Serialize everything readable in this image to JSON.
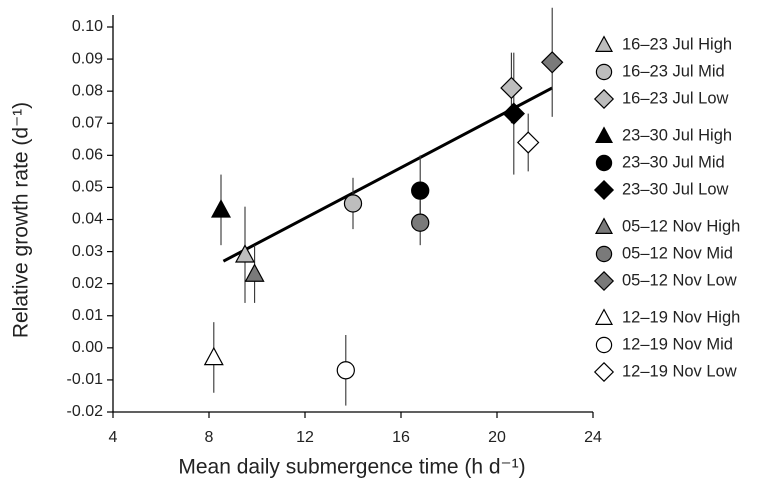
{
  "chart_data": {
    "type": "scatter",
    "xlabel": "Mean daily submergence time (h d⁻¹)",
    "ylabel": "Relative growth rate (d⁻¹)",
    "xlim": [
      4,
      24
    ],
    "xticks": [
      4,
      8,
      12,
      16,
      20,
      24
    ],
    "ylim": [
      -0.02,
      0.1
    ],
    "yticks": [
      {
        "value": -0.02,
        "label": "-0.02"
      },
      {
        "value": -0.01,
        "label": "-0.01"
      },
      {
        "value": 0,
        "label": "0.00"
      },
      {
        "value": 0.01,
        "label": "0.01"
      },
      {
        "value": 0.02,
        "label": "0.02"
      },
      {
        "value": 0.03,
        "label": "0.03"
      },
      {
        "value": 0.04,
        "label": "0.04"
      },
      {
        "value": 0.05,
        "label": "0.05"
      },
      {
        "value": 0.06,
        "label": "0.06"
      },
      {
        "value": 0.07,
        "label": "0.07"
      },
      {
        "value": 0.08,
        "label": "0.08"
      },
      {
        "value": 0.09,
        "label": "0.09"
      },
      {
        "value": 0.1,
        "label": "0.10"
      }
    ],
    "series": [
      {
        "name": "16–23 Jul High",
        "color": "#bdbdbd",
        "marker": "triangle",
        "x": [
          9.5
        ],
        "values": [
          0.029
        ],
        "errors": [
          0.015
        ]
      },
      {
        "name": "16–23 Jul Mid",
        "color": "#bdbdbd",
        "marker": "circle",
        "x": [
          14.0
        ],
        "values": [
          0.045
        ],
        "errors": [
          0.008
        ]
      },
      {
        "name": "16–23 Jul Low",
        "color": "#bdbdbd",
        "marker": "diamond",
        "x": [
          20.6
        ],
        "values": [
          0.081
        ],
        "errors": [
          0.011
        ]
      },
      {
        "name": "23–30 Jul High",
        "color": "#000000",
        "marker": "triangle",
        "x": [
          8.5
        ],
        "values": [
          0.043
        ],
        "errors": [
          0.011
        ]
      },
      {
        "name": "23–30 Jul Mid",
        "color": "#000000",
        "marker": "circle",
        "x": [
          16.8
        ],
        "values": [
          0.049
        ],
        "errors": [
          0.011
        ]
      },
      {
        "name": "23–30 Jul Low",
        "color": "#000000",
        "marker": "diamond",
        "x": [
          20.7
        ],
        "values": [
          0.073
        ],
        "errors": [
          0.019
        ]
      },
      {
        "name": "05–12 Nov High",
        "color": "#7a7a7a",
        "marker": "triangle",
        "x": [
          9.9
        ],
        "values": [
          0.023
        ],
        "errors": [
          0.009
        ]
      },
      {
        "name": "05–12 Nov Mid",
        "color": "#7a7a7a",
        "marker": "circle",
        "x": [
          16.8
        ],
        "values": [
          0.039
        ],
        "errors": [
          0.007
        ]
      },
      {
        "name": "05–12 Nov Low",
        "color": "#7a7a7a",
        "marker": "diamond",
        "x": [
          22.3
        ],
        "values": [
          0.089
        ],
        "errors": [
          0.017
        ]
      },
      {
        "name": "12–19 Nov High",
        "color": "#ffffff",
        "marker": "triangle",
        "x": [
          8.2
        ],
        "values": [
          -0.003
        ],
        "errors": [
          0.011
        ]
      },
      {
        "name": "12–19 Nov Mid",
        "color": "#ffffff",
        "marker": "circle",
        "x": [
          13.7
        ],
        "values": [
          -0.007
        ],
        "errors": [
          0.011
        ]
      },
      {
        "name": "12–19 Nov Low",
        "color": "#ffffff",
        "marker": "diamond",
        "x": [
          21.3
        ],
        "values": [
          0.064
        ],
        "errors": [
          0.009
        ]
      }
    ],
    "trendline": {
      "x": [
        8.6,
        22.3
      ],
      "values": [
        0.027,
        0.081
      ]
    }
  }
}
